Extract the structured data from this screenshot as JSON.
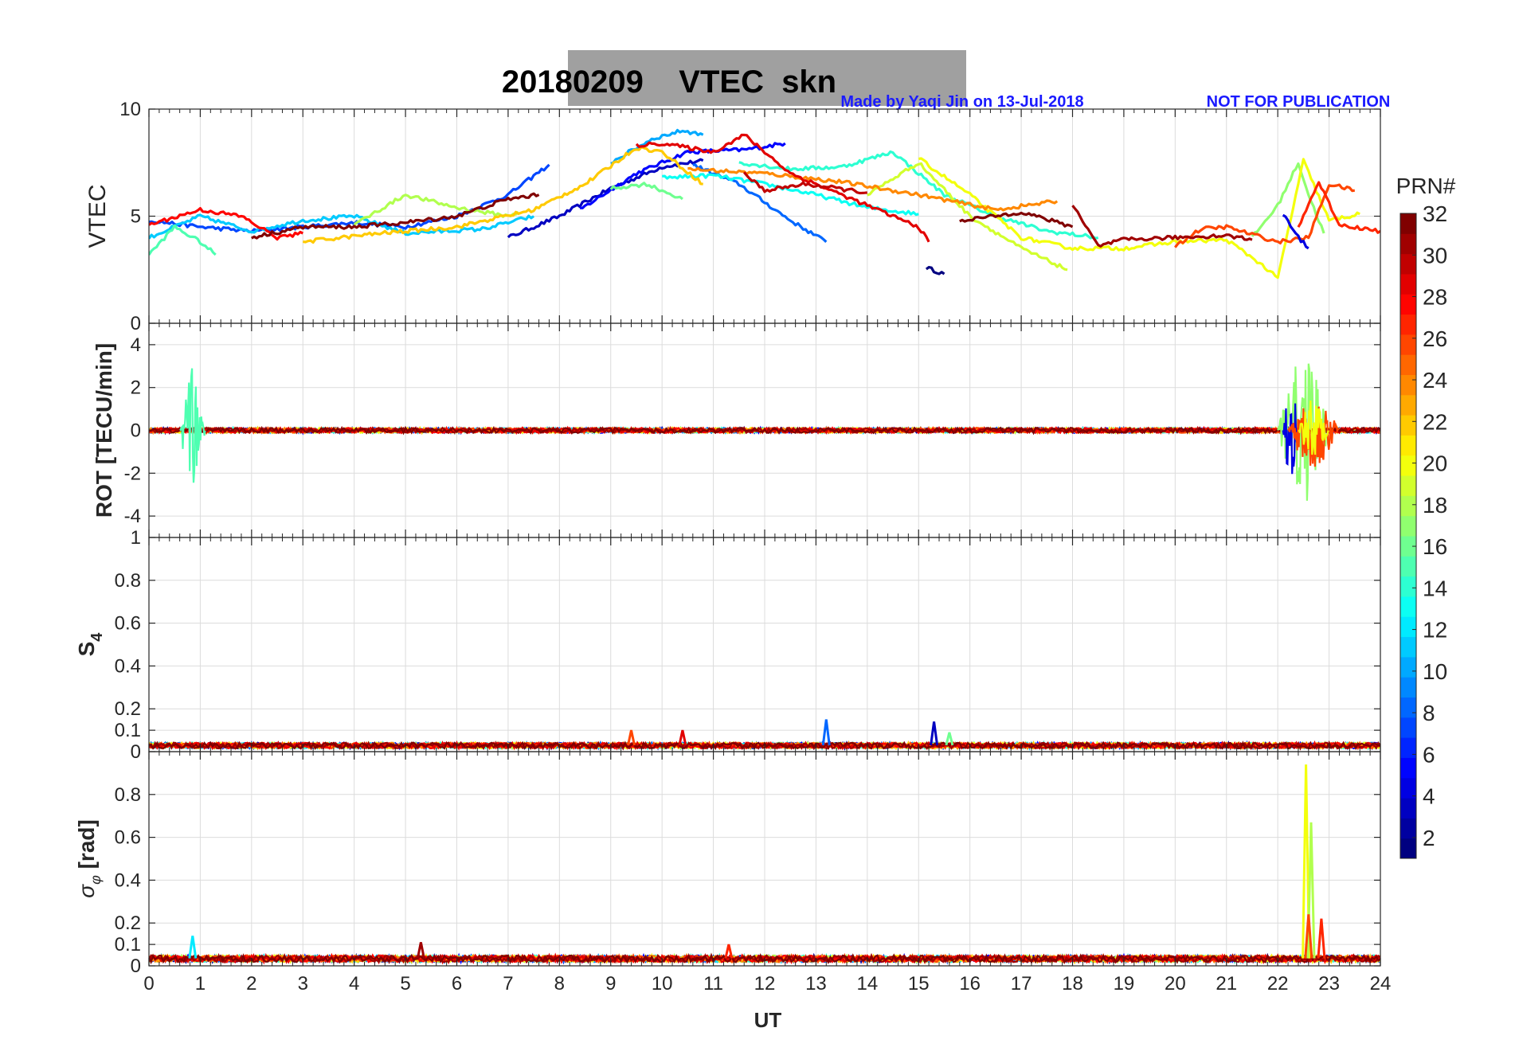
{
  "title": "20180209    VTEC  skn",
  "credit_left": "Made by Yaqi Jin on 13-Jul-2018",
  "credit_right": "NOT FOR PUBLICATION",
  "xlabel": "UT",
  "colorbar": {
    "label": "PRN#",
    "ticks": [
      "2",
      "4",
      "6",
      "8",
      "10",
      "12",
      "14",
      "16",
      "18",
      "20",
      "22",
      "24",
      "26",
      "28",
      "30",
      "32"
    ],
    "range": [
      1,
      32
    ],
    "colormap": "jet"
  },
  "chart_data": [
    {
      "type": "line",
      "panel": "VTEC",
      "ylabel": "VTEC",
      "xlim": [
        0,
        24
      ],
      "ylim": [
        0,
        10
      ],
      "yticks": [
        "0",
        "5",
        "10"
      ],
      "series": [
        {
          "prn": 1,
          "x": [
            15.15,
            15.5
          ],
          "y": [
            2.6,
            2.3
          ]
        },
        {
          "prn": 3,
          "x": [
            7.0,
            8.0,
            9.0,
            10.0,
            10.8
          ],
          "y": [
            4.0,
            5.0,
            6.3,
            7.3,
            7.6
          ]
        },
        {
          "prn": 5,
          "x": [
            8.4,
            9.5,
            10.5,
            11.6,
            12.4
          ],
          "y": [
            5.3,
            7.0,
            8.0,
            8.1,
            8.4
          ]
        },
        {
          "prn": 7,
          "x": [
            0.0,
            1.0,
            2.0,
            3.0,
            4.0,
            5.0,
            6.0,
            7.0,
            7.8
          ],
          "y": [
            4.8,
            4.5,
            4.3,
            4.5,
            4.7,
            4.5,
            5.0,
            6.0,
            7.4
          ]
        },
        {
          "prn": 8,
          "x": [
            10.6,
            11.5,
            12.5,
            13.2
          ],
          "y": [
            7.4,
            6.5,
            4.8,
            3.8
          ]
        },
        {
          "prn": 10,
          "x": [
            9.0,
            9.8,
            10.4,
            10.8
          ],
          "y": [
            7.5,
            8.6,
            9.0,
            8.8
          ]
        },
        {
          "prn": 11,
          "x": [
            0.0,
            1.0,
            2.0,
            3.0,
            4.0,
            5.0,
            6.5,
            7.5
          ],
          "y": [
            4.0,
            5.0,
            4.3,
            4.8,
            5.0,
            4.2,
            4.4,
            5.0
          ]
        },
        {
          "prn": 13,
          "x": [
            10.0,
            11.0,
            12.0,
            13.0,
            14.0,
            15.0
          ],
          "y": [
            6.8,
            6.9,
            6.5,
            6.0,
            5.4,
            5.1
          ]
        },
        {
          "prn": 14,
          "x": [
            11.5,
            12.5,
            13.5,
            14.5,
            15.5,
            16.5,
            17.5,
            18.5
          ],
          "y": [
            7.5,
            7.2,
            7.3,
            8.0,
            6.0,
            5.0,
            4.3,
            4.0
          ]
        },
        {
          "prn": 15,
          "x": [
            0.0,
            0.5,
            1.0,
            1.3
          ],
          "y": [
            3.2,
            4.5,
            3.8,
            3.2
          ]
        },
        {
          "prn": 16,
          "x": [
            9.0,
            9.7,
            10.4
          ],
          "y": [
            6.3,
            6.5,
            5.8
          ]
        },
        {
          "prn": 17,
          "x": [
            21.5,
            22.0,
            22.4,
            22.6,
            22.9
          ],
          "y": [
            4.0,
            5.5,
            7.5,
            6.0,
            4.2
          ]
        },
        {
          "prn": 18,
          "x": [
            4.0,
            5.0,
            6.0,
            7.0,
            7.2
          ],
          "y": [
            4.6,
            6.0,
            5.4,
            5.0,
            5.2
          ]
        },
        {
          "prn": 19,
          "x": [
            14.0,
            15.0,
            16.0,
            17.0,
            17.9
          ],
          "y": [
            6.0,
            7.5,
            5.0,
            3.5,
            2.5
          ]
        },
        {
          "prn": 20,
          "x": [
            15.0,
            16.0,
            17.0,
            18.0,
            19.0,
            20.0,
            21.0,
            21.6,
            22.0,
            22.5,
            23.0,
            23.6
          ],
          "y": [
            7.7,
            6.0,
            4.0,
            3.5,
            3.5,
            3.8,
            3.9,
            2.9,
            2.1,
            7.6,
            4.8,
            5.1
          ]
        },
        {
          "prn": 22,
          "x": [
            3.0,
            4.5,
            6.0,
            7.5,
            8.5,
            9.5,
            10.0,
            10.8
          ],
          "y": [
            3.8,
            4.2,
            4.5,
            5.3,
            6.5,
            8.2,
            8.0,
            6.5
          ]
        },
        {
          "prn": 24,
          "x": [
            10.5,
            12.0,
            13.5,
            15.0,
            16.5,
            17.7
          ],
          "y": [
            7.2,
            7.0,
            6.6,
            6.0,
            5.3,
            5.7
          ]
        },
        {
          "prn": 26,
          "x": [
            20.0,
            20.5,
            21.0,
            22.0,
            22.6,
            23.0,
            23.5
          ],
          "y": [
            3.6,
            4.4,
            4.5,
            3.8,
            4.0,
            6.5,
            6.2
          ]
        },
        {
          "prn": 28,
          "x": [
            0.0,
            1.0,
            1.8,
            2.5,
            3.0
          ],
          "y": [
            4.6,
            5.3,
            5.0,
            4.0,
            4.2
          ]
        },
        {
          "prn": 29,
          "x": [
            9.5,
            10.0,
            11.0,
            11.6,
            12.5,
            13.0,
            14.0,
            15.0,
            15.2
          ],
          "y": [
            8.3,
            8.4,
            8.0,
            8.8,
            7.0,
            6.5,
            5.5,
            4.5,
            3.8
          ]
        },
        {
          "prn": 30,
          "x": [
            11.6,
            12.0,
            12.8,
            14.0
          ],
          "y": [
            7.0,
            6.2,
            6.5,
            6.1
          ]
        },
        {
          "prn": 31,
          "x": [
            18.0,
            18.5,
            19.0,
            20.0,
            21.0,
            21.5
          ],
          "y": [
            5.5,
            3.6,
            3.9,
            4.0,
            4.1,
            3.9
          ]
        },
        {
          "prn": 32,
          "x": [
            2.0,
            3.0,
            4.0,
            5.0,
            6.0,
            7.0,
            7.6
          ],
          "y": [
            4.0,
            4.5,
            4.5,
            4.7,
            5.0,
            5.8,
            6.0
          ]
        },
        {
          "prn": 32,
          "x": [
            15.8,
            16.5,
            17.0,
            18.0
          ],
          "y": [
            4.8,
            5.0,
            5.2,
            4.5
          ]
        },
        {
          "prn": 27,
          "x": [
            22.4,
            22.8,
            23.2,
            24.0
          ],
          "y": [
            4.5,
            6.6,
            4.6,
            4.3
          ]
        },
        {
          "prn": 4,
          "x": [
            22.1,
            22.4,
            22.6
          ],
          "y": [
            5.1,
            4.0,
            3.5
          ]
        }
      ]
    },
    {
      "type": "line",
      "panel": "ROT",
      "ylabel": "ROT [TECU/min]",
      "xlim": [
        0,
        24
      ],
      "ylim": [
        -5,
        5
      ],
      "yticks": [
        "-4",
        "-2",
        "0",
        "2",
        "4"
      ],
      "noise_base": 0.12,
      "bursts": [
        {
          "x0": 0.6,
          "x1": 1.1,
          "amp": 3.0,
          "prn": 15
        },
        {
          "x0": 22.0,
          "x1": 23.0,
          "amp": 3.4,
          "prn": 17
        },
        {
          "x0": 22.1,
          "x1": 22.4,
          "amp": 2.3,
          "prn": 4
        },
        {
          "x0": 22.2,
          "x1": 23.2,
          "amp": 1.8,
          "prn": 26
        },
        {
          "x0": 22.4,
          "x1": 23.0,
          "amp": 1.5,
          "prn": 20
        }
      ]
    },
    {
      "type": "line",
      "panel": "S4",
      "ylabel": "S4",
      "xlim": [
        0,
        24
      ],
      "ylim": [
        0,
        1
      ],
      "yticks": [
        "0",
        "0.1",
        "0.2",
        "0.4",
        "0.6",
        "0.8",
        "1"
      ],
      "noise_base": 0.03,
      "spikes": [
        {
          "x": 9.4,
          "y": 0.1,
          "prn": 26
        },
        {
          "x": 10.4,
          "y": 0.1,
          "prn": 29
        },
        {
          "x": 13.2,
          "y": 0.15,
          "prn": 8
        },
        {
          "x": 15.3,
          "y": 0.14,
          "prn": 3
        },
        {
          "x": 15.6,
          "y": 0.09,
          "prn": 16
        }
      ]
    },
    {
      "type": "line",
      "panel": "sigma_phi",
      "ylabel": "σφ [rad]",
      "xlim": [
        0,
        24
      ],
      "ylim": [
        0,
        1
      ],
      "yticks": [
        "0",
        "0.1",
        "0.2",
        "0.4",
        "0.6",
        "0.8"
      ],
      "noise_base": 0.035,
      "spikes": [
        {
          "x": 0.85,
          "y": 0.14,
          "prn": 12
        },
        {
          "x": 5.3,
          "y": 0.11,
          "prn": 31
        },
        {
          "x": 11.3,
          "y": 0.1,
          "prn": 27
        },
        {
          "x": 22.55,
          "y": 0.94,
          "prn": 20
        },
        {
          "x": 22.65,
          "y": 0.67,
          "prn": 18
        },
        {
          "x": 22.6,
          "y": 0.24,
          "prn": 26
        },
        {
          "x": 22.85,
          "y": 0.22,
          "prn": 27
        }
      ]
    }
  ],
  "xticks": [
    "0",
    "1",
    "2",
    "3",
    "4",
    "5",
    "6",
    "7",
    "8",
    "9",
    "10",
    "11",
    "12",
    "13",
    "14",
    "15",
    "16",
    "17",
    "18",
    "19",
    "20",
    "21",
    "22",
    "23",
    "24"
  ]
}
